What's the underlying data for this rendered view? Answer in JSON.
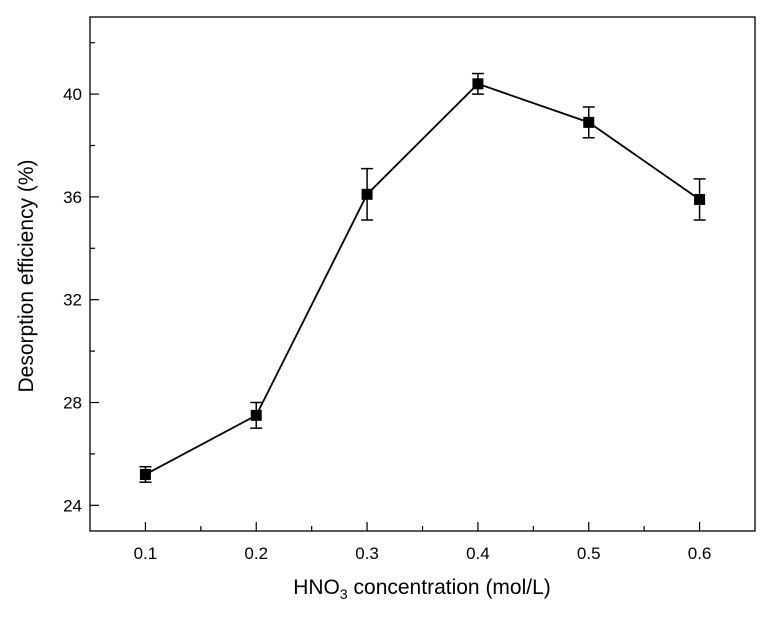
{
  "chart_data": {
    "type": "line",
    "title": "",
    "xlabel": "HNO3 concentration (mol/L)",
    "xlabel_parts": {
      "prefix": "HNO",
      "subscript": "3",
      "suffix": " concentration (mol/L)"
    },
    "ylabel": "Desorption efficiency (%)",
    "xlim": [
      0.05,
      0.65
    ],
    "ylim": [
      23,
      43
    ],
    "x_ticks": [
      0.1,
      0.2,
      0.3,
      0.4,
      0.5,
      0.6
    ],
    "x_tick_labels": [
      "0.1",
      "0.2",
      "0.3",
      "0.4",
      "0.5",
      "0.6"
    ],
    "x_minor_ticks": [
      0.15,
      0.25,
      0.35,
      0.45,
      0.55
    ],
    "y_ticks": [
      24,
      28,
      32,
      36,
      40
    ],
    "y_tick_labels": [
      "24",
      "28",
      "32",
      "36",
      "40"
    ],
    "y_minor_ticks": [
      26,
      30,
      34,
      38,
      42
    ],
    "grid": false,
    "legend": "none",
    "marker": "square",
    "color": "#000000",
    "series": [
      {
        "x": [
          0.1,
          0.2,
          0.3,
          0.4,
          0.5,
          0.6
        ],
        "y": [
          25.2,
          27.5,
          36.1,
          40.4,
          38.9,
          35.9
        ],
        "error": [
          0.3,
          0.5,
          1.0,
          0.4,
          0.6,
          0.8
        ]
      }
    ]
  }
}
